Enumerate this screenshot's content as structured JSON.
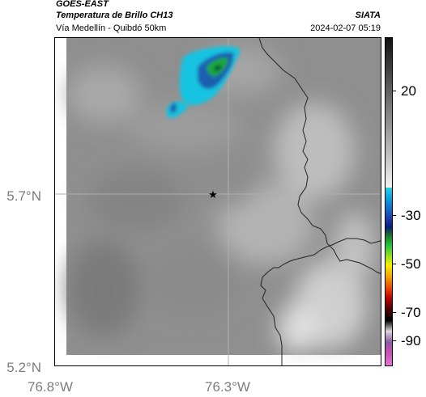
{
  "header": {
    "title_line1": "GOES-EAST",
    "title_line2": "Temperatura de Brillo CH13",
    "organization": "SIATA",
    "subtitle": "Vía Medellín - Quibdó 50km",
    "timestamp": "2024-02-07 05:19"
  },
  "map": {
    "lat_labels": [
      "5.7°N",
      "5.2°N"
    ],
    "lon_labels": [
      "76.8°W",
      "76.3°W"
    ],
    "marker_icon": "star-icon",
    "colors": {
      "background_gray": "#8f8f8f",
      "cloud_cyan": "#18c3e0",
      "cloud_blue": "#1f5fb0",
      "cloud_green": "#1ea83a",
      "border_line": "#222222",
      "grid_line": "#b0b0b0"
    }
  },
  "colorbar": {
    "tick_labels": [
      "20",
      "-30",
      "-50",
      "-70",
      "-90"
    ]
  }
}
